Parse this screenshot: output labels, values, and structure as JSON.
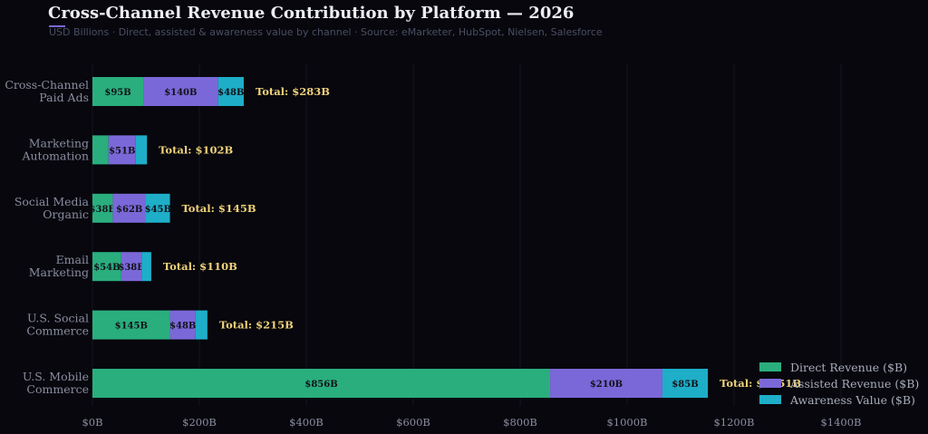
{
  "title": "Cross-Channel Revenue Contribution by Platform — 2026",
  "subtitle": "USD Billions  ·  Direct, assisted &  awareness value by channel  ·  Source: eMarketer, HubSpot, Nielsen, Salesforce",
  "colors": {
    "direct": "#2aae7e",
    "assisted": "#7b68d8",
    "awareness": "#1eaec8",
    "total_label": "#f0d27a",
    "background": "#07070d",
    "axis_text": "#8a8da0"
  },
  "chart_data": {
    "type": "bar",
    "orientation": "horizontal",
    "stacked": true,
    "title": "Cross-Channel Revenue Contribution by Platform — 2026",
    "categories": [
      "Cross-Channel Paid Ads",
      "Marketing Automation",
      "Social Media Organic",
      "Email Marketing",
      "U.S. Social Commerce",
      "U.S. Mobile Commerce"
    ],
    "category_label_lines": [
      [
        "Cross-Channel",
        "Paid Ads"
      ],
      [
        "Marketing",
        "Automation"
      ],
      [
        "Social Media",
        "Organic"
      ],
      [
        "Email",
        "Marketing"
      ],
      [
        "U.S. Social",
        "Commerce"
      ],
      [
        "U.S. Mobile",
        "Commerce"
      ]
    ],
    "series": [
      {
        "name": "Direct Revenue ($B)",
        "color": "#2aae7e",
        "values": [
          95,
          30,
          38,
          54,
          145,
          856
        ],
        "labels": [
          "$95B",
          "",
          "$38B",
          "$54B",
          "$145B",
          "$856B"
        ]
      },
      {
        "name": "Assisted Revenue ($B)",
        "color": "#7b68d8",
        "values": [
          140,
          51,
          62,
          38,
          48,
          210
        ],
        "labels": [
          "$140B",
          "$51B",
          "$62B",
          "$38B",
          "$48B",
          "$210B"
        ]
      },
      {
        "name": "Awareness Value ($B)",
        "color": "#1eaec8",
        "values": [
          48,
          21,
          45,
          18,
          22,
          85
        ],
        "labels": [
          "$48B",
          "",
          "$45B",
          "",
          "",
          "$85B"
        ]
      }
    ],
    "totals": [
      "Total: $283B",
      "Total: $102B",
      "Total: $145B",
      "Total: $110B",
      "Total: $215B",
      "Total: $1151B"
    ],
    "xlim": [
      0,
      1500
    ],
    "x_ticks": [
      0,
      200,
      400,
      600,
      800,
      1000,
      1200,
      1400
    ],
    "x_tick_labels": [
      "$0B",
      "$200B",
      "$400B",
      "$600B",
      "$800B",
      "$1000B",
      "$1200B",
      "$1400B"
    ],
    "grid": "vertical",
    "legend_position": "bottom-right"
  }
}
